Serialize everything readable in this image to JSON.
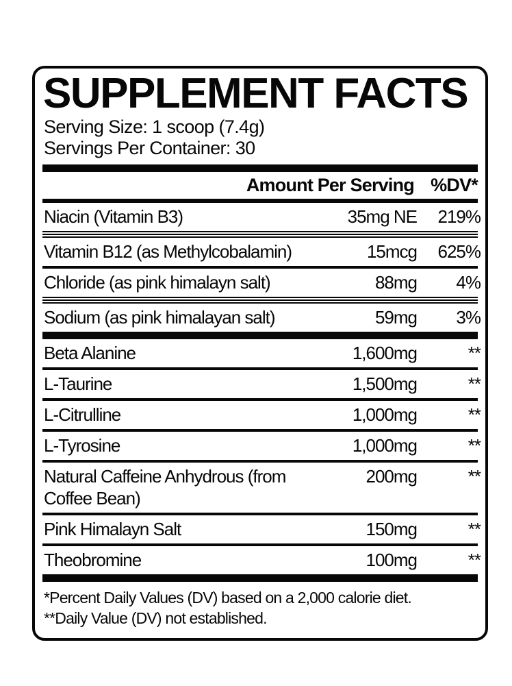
{
  "panel": {
    "title": "SUPPLEMENT FACTS",
    "serving_size": "Serving Size: 1 scoop (7.4g)",
    "servings_per_container": "Servings Per Container: 30"
  },
  "table": {
    "header": {
      "amount": "Amount Per Serving",
      "dv": "%DV*"
    },
    "rows": [
      {
        "name": "Niacin (Vitamin B3)",
        "amount": "35mg NE",
        "dv": "219%"
      },
      {
        "name": "Vitamin B12 (as Methylcobalamin)",
        "amount": "15mcg",
        "dv": "625%"
      },
      {
        "name": "Chloride (as pink himalayn salt)",
        "amount": "88mg",
        "dv": "4%"
      },
      {
        "name": "Sodium (as pink himalayan salt)",
        "amount": "59mg",
        "dv": "3%"
      },
      {
        "name": "Beta Alanine",
        "amount": "1,600mg",
        "dv": "**"
      },
      {
        "name": "L-Taurine",
        "amount": "1,500mg",
        "dv": "**"
      },
      {
        "name": "L-Citrulline",
        "amount": "1,000mg",
        "dv": "**"
      },
      {
        "name": "L-Tyrosine",
        "amount": "1,000mg",
        "dv": "**"
      },
      {
        "name": "Natural Caffeine Anhydrous (from Coffee Bean)",
        "amount": "200mg",
        "dv": "**"
      },
      {
        "name": "Pink Himalayn Salt",
        "amount": "150mg",
        "dv": "**"
      },
      {
        "name": "Theobromine",
        "amount": "100mg",
        "dv": "**"
      }
    ]
  },
  "footnotes": [
    "*Percent Daily Values (DV) based on a 2,000 calorie diet.",
    "**Daily Value (DV) not established."
  ],
  "colors": {
    "ink": "#070707",
    "background": "#ffffff"
  }
}
